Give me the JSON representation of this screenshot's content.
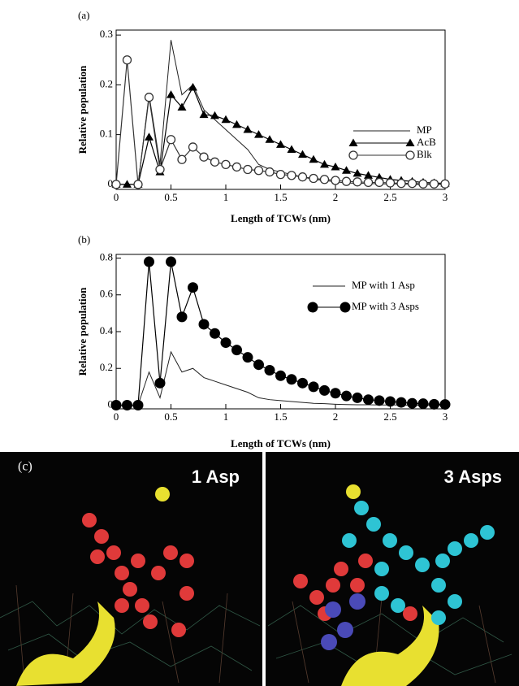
{
  "chart_data": [
    {
      "type": "line",
      "panel_label": "(a)",
      "x_label": "Length of TCWs (nm)",
      "y_label": "Relative population",
      "x": [
        0,
        0.1,
        0.2,
        0.3,
        0.4,
        0.5,
        0.6,
        0.7,
        0.8,
        0.9,
        1.0,
        1.1,
        1.2,
        1.3,
        1.4,
        1.5,
        1.6,
        1.7,
        1.8,
        1.9,
        2.0,
        2.1,
        2.2,
        2.3,
        2.4,
        2.5,
        2.6,
        2.7,
        2.8,
        2.9,
        3.0
      ],
      "xlim": [
        0,
        3
      ],
      "ylim": [
        -0.01,
        0.31
      ],
      "xticks": [
        0,
        0.5,
        1,
        1.5,
        2,
        2.5,
        3
      ],
      "yticks": [
        0,
        0.1,
        0.2,
        0.3
      ],
      "legend": "upper right",
      "series": [
        {
          "name": "MP",
          "color": "#222222",
          "marker": "none",
          "values": [
            0,
            0,
            0,
            0.18,
            0.04,
            0.29,
            0.18,
            0.2,
            0.15,
            0.13,
            0.11,
            0.09,
            0.07,
            0.04,
            0.03,
            0.025,
            0.02,
            0.015,
            0.01,
            0.008,
            0.005,
            0.003,
            0.002,
            0.002,
            0.001,
            0.001,
            0.001,
            0,
            0,
            0,
            0
          ]
        },
        {
          "name": "AcB",
          "color": "#000000",
          "marker": "triangle",
          "values": [
            0,
            0,
            0,
            0.095,
            0.025,
            0.18,
            0.155,
            0.195,
            0.14,
            0.138,
            0.13,
            0.12,
            0.11,
            0.1,
            0.09,
            0.08,
            0.07,
            0.06,
            0.05,
            0.04,
            0.035,
            0.028,
            0.022,
            0.018,
            0.014,
            0.01,
            0.008,
            0.006,
            0.004,
            0.003,
            0.002
          ]
        },
        {
          "name": "Blk",
          "color": "#333333",
          "marker": "circle-open",
          "values": [
            0,
            0.25,
            0,
            0.175,
            0.03,
            0.09,
            0.05,
            0.075,
            0.055,
            0.045,
            0.04,
            0.035,
            0.03,
            0.028,
            0.025,
            0.02,
            0.018,
            0.015,
            0.012,
            0.01,
            0.008,
            0.006,
            0.005,
            0.004,
            0.004,
            0.003,
            0.002,
            0.002,
            0.001,
            0.001,
            0.001
          ]
        }
      ]
    },
    {
      "type": "line",
      "panel_label": "(b)",
      "x_label": "Length of TCWs (nm)",
      "y_label": "Relative population",
      "x": [
        0,
        0.1,
        0.2,
        0.3,
        0.4,
        0.5,
        0.6,
        0.7,
        0.8,
        0.9,
        1.0,
        1.1,
        1.2,
        1.3,
        1.4,
        1.5,
        1.6,
        1.7,
        1.8,
        1.9,
        2.0,
        2.1,
        2.2,
        2.3,
        2.4,
        2.5,
        2.6,
        2.7,
        2.8,
        2.9,
        3.0
      ],
      "xlim": [
        0,
        3
      ],
      "ylim": [
        -0.02,
        0.82
      ],
      "xticks": [
        0,
        0.5,
        1,
        1.5,
        2,
        2.5,
        3
      ],
      "yticks": [
        0,
        0.2,
        0.4,
        0.6,
        0.8
      ],
      "legend": "upper right",
      "series": [
        {
          "name": "MP with 1 Asp",
          "color": "#222222",
          "marker": "none",
          "values": [
            0,
            0,
            0,
            0.18,
            0.04,
            0.29,
            0.18,
            0.2,
            0.15,
            0.13,
            0.11,
            0.09,
            0.07,
            0.04,
            0.03,
            0.025,
            0.02,
            0.015,
            0.01,
            0.008,
            0.005,
            0.003,
            0.002,
            0.002,
            0.001,
            0.001,
            0.001,
            0,
            0,
            0,
            0
          ]
        },
        {
          "name": "MP with 3 Asps",
          "color": "#000000",
          "marker": "circle-filled",
          "values": [
            0,
            0,
            0,
            0.78,
            0.12,
            0.78,
            0.48,
            0.64,
            0.44,
            0.39,
            0.34,
            0.3,
            0.26,
            0.22,
            0.19,
            0.16,
            0.14,
            0.12,
            0.1,
            0.08,
            0.065,
            0.05,
            0.04,
            0.03,
            0.025,
            0.02,
            0.015,
            0.01,
            0.008,
            0.005,
            0.004
          ]
        }
      ]
    }
  ],
  "panel_c": {
    "label": "(c)",
    "left_label": "1 Asp",
    "right_label": "3 Asps"
  }
}
